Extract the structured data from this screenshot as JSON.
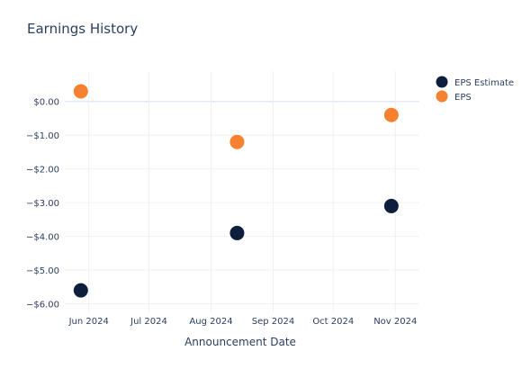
{
  "chart_data": {
    "type": "scatter",
    "title": "Earnings History",
    "xlabel": "Announcement Date",
    "ylabel": "",
    "x_ticks": [
      "Jun 2024",
      "Jul 2024",
      "Aug 2024",
      "Sep 2024",
      "Oct 2024",
      "Nov 2024"
    ],
    "x_tick_dates": [
      "2024-06-01",
      "2024-07-01",
      "2024-08-01",
      "2024-09-01",
      "2024-10-01",
      "2024-11-01"
    ],
    "xlim": [
      "2024-05-20",
      "2024-11-13"
    ],
    "y_ticks": [
      "$0.00",
      "−$1.00",
      "−$2.00",
      "−$3.00",
      "−$4.00",
      "−$5.00",
      "−$6.00"
    ],
    "y_tick_values": [
      0,
      -1,
      -2,
      -3,
      -4,
      -5,
      -6
    ],
    "ylim": [
      -6.25,
      0.9
    ],
    "grid": true,
    "legend_position": "top-right",
    "series": [
      {
        "name": "EPS Estimate",
        "color": "#0d1f3c",
        "points": [
          {
            "x": "2024-05-28",
            "y": -5.6
          },
          {
            "x": "2024-08-14",
            "y": -3.9
          },
          {
            "x": "2024-10-30",
            "y": -3.1
          }
        ]
      },
      {
        "name": "EPS",
        "color": "#f58131",
        "points": [
          {
            "x": "2024-05-28",
            "y": 0.3
          },
          {
            "x": "2024-08-14",
            "y": -1.2
          },
          {
            "x": "2024-10-30",
            "y": -0.4
          }
        ]
      }
    ]
  }
}
